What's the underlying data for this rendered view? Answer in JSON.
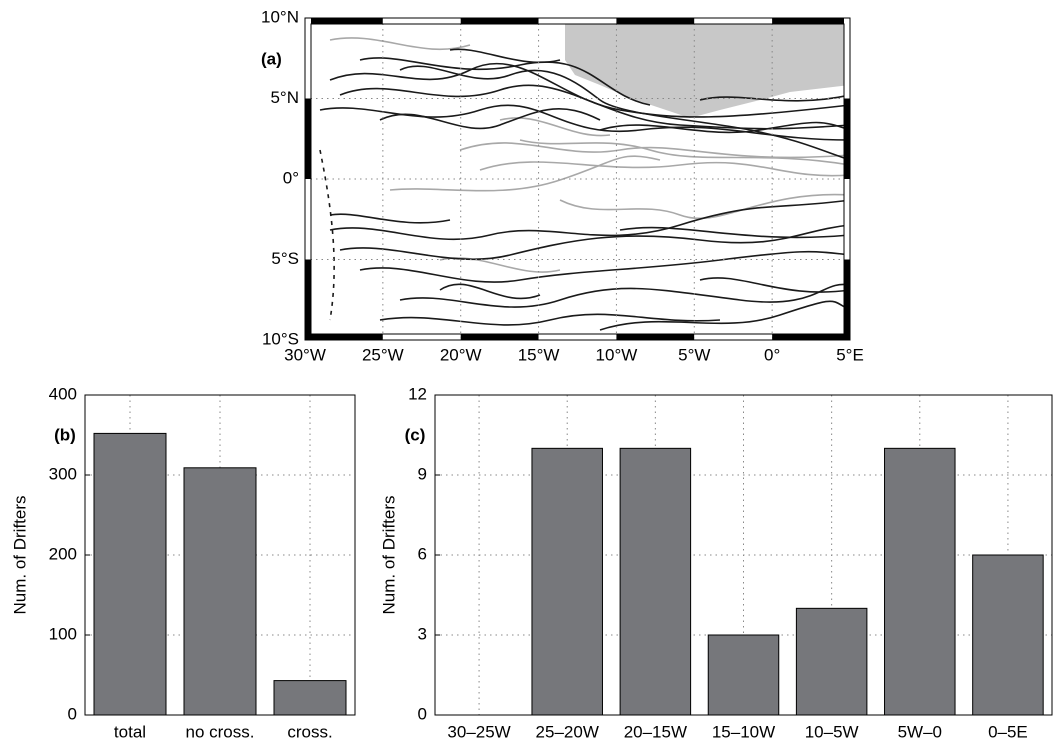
{
  "chart_data": [
    {
      "type": "map",
      "label": "(a)",
      "xlim": [
        -30,
        5
      ],
      "ylim": [
        -10,
        10
      ],
      "xticks": [
        {
          "value": -30,
          "label": "30°W"
        },
        {
          "value": -25,
          "label": "25°W"
        },
        {
          "value": -20,
          "label": "20°W"
        },
        {
          "value": -15,
          "label": "15°W"
        },
        {
          "value": -10,
          "label": "10°W"
        },
        {
          "value": -5,
          "label": "5°W"
        },
        {
          "value": 0,
          "label": "0°"
        },
        {
          "value": 5,
          "label": "5°E"
        }
      ],
      "yticks": [
        {
          "value": -10,
          "label": "10°S"
        },
        {
          "value": -5,
          "label": "5°S"
        },
        {
          "value": 0,
          "label": "0°"
        },
        {
          "value": 5,
          "label": "5°N"
        },
        {
          "value": 10,
          "label": "10°N"
        }
      ],
      "grid": true,
      "land_color": "#c8c8c8"
    },
    {
      "type": "bar",
      "label": "(b)",
      "ylabel": "Num. of Drifters",
      "categories": [
        "total",
        "no cross.",
        "cross."
      ],
      "values": [
        352,
        309,
        43
      ],
      "color": "#76777b",
      "ylim": [
        0,
        400
      ],
      "yticks": [
        0,
        100,
        200,
        300,
        400
      ],
      "grid": true
    },
    {
      "type": "bar",
      "label": "(c)",
      "ylabel": "Num. of Drifters",
      "categories": [
        "30–25W",
        "25–20W",
        "20–15W",
        "15–10W",
        "10–5W",
        "5W–0",
        "0–5E"
      ],
      "values": [
        0,
        10,
        10,
        3,
        4,
        10,
        6
      ],
      "color": "#76777b",
      "ylim": [
        0,
        12
      ],
      "yticks": [
        0,
        3,
        6,
        9,
        12
      ],
      "grid": true
    }
  ]
}
